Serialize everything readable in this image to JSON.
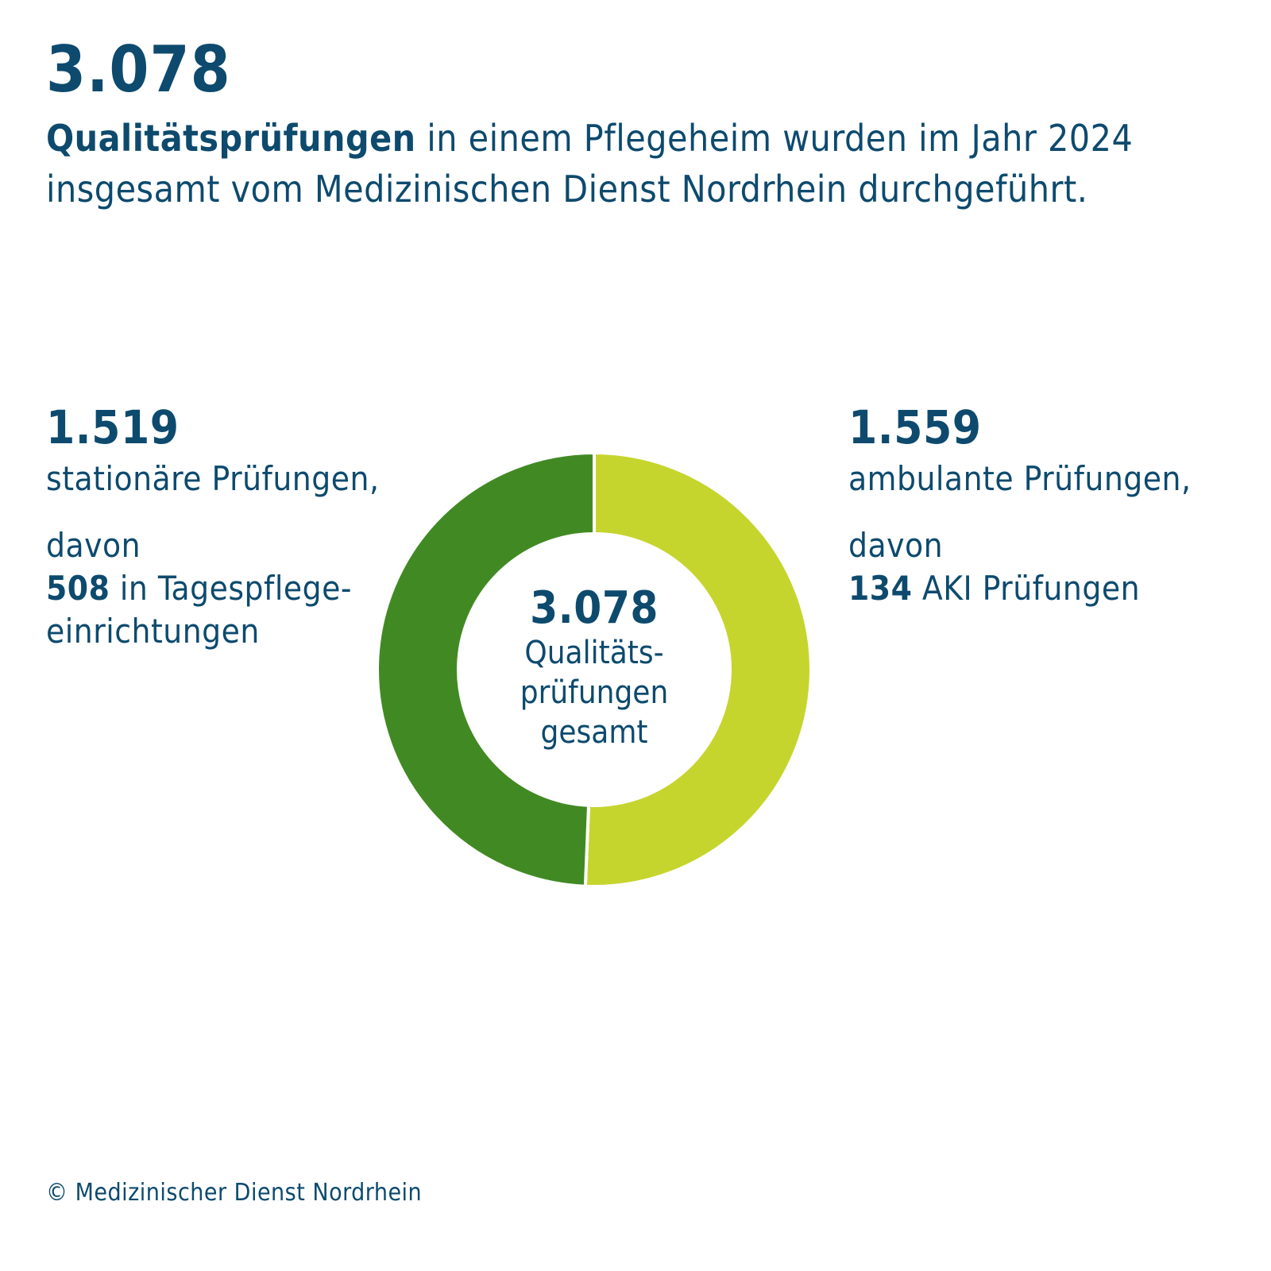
{
  "header": {
    "number": "3.078",
    "text_bold": "Qualitätsprüfungen",
    "text_rest": " in einem Pflegeheim wurden im Jahr 2024 insgesamt vom Medizinischen Dienst Nordrhein durchgeführt."
  },
  "left_panel": {
    "number": "1.519",
    "label": "stationäre Prüfungen,",
    "davon": "davon",
    "detail_bold": "508",
    "detail_rest": " in Tagespflege-einrichtungen"
  },
  "right_panel": {
    "number": "1.559",
    "label": "ambulante Prüfungen,",
    "davon": "davon",
    "detail_bold": "134",
    "detail_rest": " AKI Prüfungen"
  },
  "center": {
    "total": "3.078",
    "label": "Qualitäts-\nprüfungen\ngesamt"
  },
  "copyright": "© Medizinischer Dienst Nordrhein",
  "chart_data": {
    "type": "pie",
    "donut": true,
    "categories": [
      "stationäre Prüfungen",
      "ambulante Prüfungen"
    ],
    "values": [
      1519,
      1559
    ],
    "total": 3078,
    "colors": [
      "#418a23",
      "#c6d52e"
    ],
    "start": "top",
    "order": "ambulante clockwise from top, stationäre completes the ring"
  }
}
